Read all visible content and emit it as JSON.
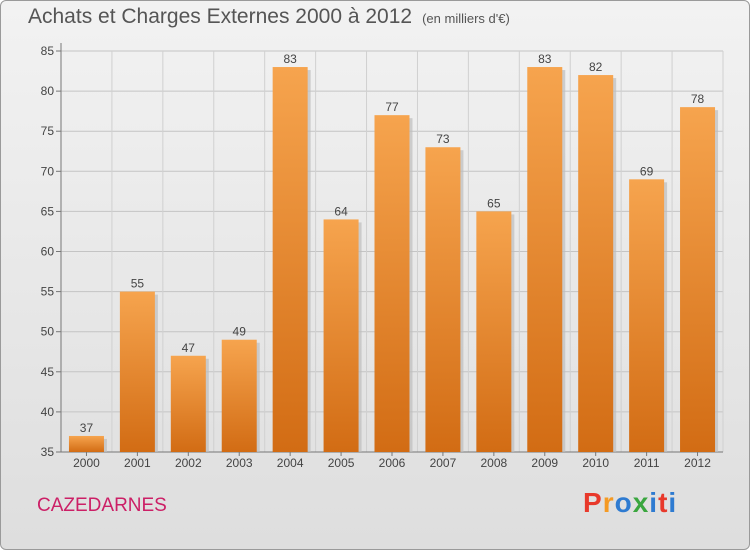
{
  "header": {
    "title": "Achats et Charges Externes 2000 à 2012",
    "subtitle": "(en milliers d'€)"
  },
  "footer": {
    "commune": "CAZEDARNES",
    "logo_text": "Proxiti"
  },
  "colors": {
    "bar_light": "#f6a44e",
    "bar_dark": "#d26c14",
    "commune_text": "#cc1f66",
    "logo_letters": [
      "#e8392b",
      "#f59a23",
      "#2e7bd1",
      "#3aa63f",
      "#2e7bd1",
      "#e8392b",
      "#2e7bd1"
    ]
  },
  "chart_data": {
    "type": "bar",
    "title": "Achats et Charges Externes 2000 à 2012",
    "subtitle": "(en milliers d'€)",
    "categories": [
      "2000",
      "2001",
      "2002",
      "2003",
      "2004",
      "2005",
      "2006",
      "2007",
      "2008",
      "2009",
      "2010",
      "2011",
      "2012"
    ],
    "values": [
      37,
      55,
      47,
      49,
      83,
      64,
      77,
      73,
      65,
      83,
      82,
      69,
      78
    ],
    "ylim": [
      35,
      85
    ],
    "yticks": [
      35,
      40,
      45,
      50,
      55,
      60,
      65,
      70,
      75,
      80,
      85
    ],
    "grid": true,
    "xlabel": "",
    "ylabel": ""
  }
}
